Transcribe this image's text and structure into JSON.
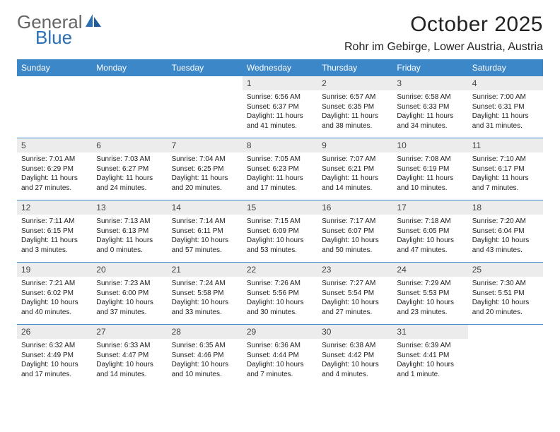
{
  "logo": {
    "text_general": "General",
    "text_blue": "Blue"
  },
  "header": {
    "month_title": "October 2025",
    "location": "Rohr im Gebirge, Lower Austria, Austria"
  },
  "colors": {
    "header_bar": "#3b87c8",
    "daynum_bg": "#ececec",
    "rule": "#3b87c8",
    "text": "#222222",
    "logo_blue": "#2b6fb5",
    "logo_gray": "#666666"
  },
  "typography": {
    "month_title_fontsize": 30,
    "location_fontsize": 16,
    "dow_fontsize": 12,
    "daynum_fontsize": 12,
    "detail_fontsize": 10
  },
  "days_of_week": [
    "Sunday",
    "Monday",
    "Tuesday",
    "Wednesday",
    "Thursday",
    "Friday",
    "Saturday"
  ],
  "weeks": [
    [
      null,
      null,
      null,
      {
        "n": "1",
        "sunrise": "6:56 AM",
        "sunset": "6:37 PM",
        "daylight": "11 hours and 41 minutes."
      },
      {
        "n": "2",
        "sunrise": "6:57 AM",
        "sunset": "6:35 PM",
        "daylight": "11 hours and 38 minutes."
      },
      {
        "n": "3",
        "sunrise": "6:58 AM",
        "sunset": "6:33 PM",
        "daylight": "11 hours and 34 minutes."
      },
      {
        "n": "4",
        "sunrise": "7:00 AM",
        "sunset": "6:31 PM",
        "daylight": "11 hours and 31 minutes."
      }
    ],
    [
      {
        "n": "5",
        "sunrise": "7:01 AM",
        "sunset": "6:29 PM",
        "daylight": "11 hours and 27 minutes."
      },
      {
        "n": "6",
        "sunrise": "7:03 AM",
        "sunset": "6:27 PM",
        "daylight": "11 hours and 24 minutes."
      },
      {
        "n": "7",
        "sunrise": "7:04 AM",
        "sunset": "6:25 PM",
        "daylight": "11 hours and 20 minutes."
      },
      {
        "n": "8",
        "sunrise": "7:05 AM",
        "sunset": "6:23 PM",
        "daylight": "11 hours and 17 minutes."
      },
      {
        "n": "9",
        "sunrise": "7:07 AM",
        "sunset": "6:21 PM",
        "daylight": "11 hours and 14 minutes."
      },
      {
        "n": "10",
        "sunrise": "7:08 AM",
        "sunset": "6:19 PM",
        "daylight": "11 hours and 10 minutes."
      },
      {
        "n": "11",
        "sunrise": "7:10 AM",
        "sunset": "6:17 PM",
        "daylight": "11 hours and 7 minutes."
      }
    ],
    [
      {
        "n": "12",
        "sunrise": "7:11 AM",
        "sunset": "6:15 PM",
        "daylight": "11 hours and 3 minutes."
      },
      {
        "n": "13",
        "sunrise": "7:13 AM",
        "sunset": "6:13 PM",
        "daylight": "11 hours and 0 minutes."
      },
      {
        "n": "14",
        "sunrise": "7:14 AM",
        "sunset": "6:11 PM",
        "daylight": "10 hours and 57 minutes."
      },
      {
        "n": "15",
        "sunrise": "7:15 AM",
        "sunset": "6:09 PM",
        "daylight": "10 hours and 53 minutes."
      },
      {
        "n": "16",
        "sunrise": "7:17 AM",
        "sunset": "6:07 PM",
        "daylight": "10 hours and 50 minutes."
      },
      {
        "n": "17",
        "sunrise": "7:18 AM",
        "sunset": "6:05 PM",
        "daylight": "10 hours and 47 minutes."
      },
      {
        "n": "18",
        "sunrise": "7:20 AM",
        "sunset": "6:04 PM",
        "daylight": "10 hours and 43 minutes."
      }
    ],
    [
      {
        "n": "19",
        "sunrise": "7:21 AM",
        "sunset": "6:02 PM",
        "daylight": "10 hours and 40 minutes."
      },
      {
        "n": "20",
        "sunrise": "7:23 AM",
        "sunset": "6:00 PM",
        "daylight": "10 hours and 37 minutes."
      },
      {
        "n": "21",
        "sunrise": "7:24 AM",
        "sunset": "5:58 PM",
        "daylight": "10 hours and 33 minutes."
      },
      {
        "n": "22",
        "sunrise": "7:26 AM",
        "sunset": "5:56 PM",
        "daylight": "10 hours and 30 minutes."
      },
      {
        "n": "23",
        "sunrise": "7:27 AM",
        "sunset": "5:54 PM",
        "daylight": "10 hours and 27 minutes."
      },
      {
        "n": "24",
        "sunrise": "7:29 AM",
        "sunset": "5:53 PM",
        "daylight": "10 hours and 23 minutes."
      },
      {
        "n": "25",
        "sunrise": "7:30 AM",
        "sunset": "5:51 PM",
        "daylight": "10 hours and 20 minutes."
      }
    ],
    [
      {
        "n": "26",
        "sunrise": "6:32 AM",
        "sunset": "4:49 PM",
        "daylight": "10 hours and 17 minutes."
      },
      {
        "n": "27",
        "sunrise": "6:33 AM",
        "sunset": "4:47 PM",
        "daylight": "10 hours and 14 minutes."
      },
      {
        "n": "28",
        "sunrise": "6:35 AM",
        "sunset": "4:46 PM",
        "daylight": "10 hours and 10 minutes."
      },
      {
        "n": "29",
        "sunrise": "6:36 AM",
        "sunset": "4:44 PM",
        "daylight": "10 hours and 7 minutes."
      },
      {
        "n": "30",
        "sunrise": "6:38 AM",
        "sunset": "4:42 PM",
        "daylight": "10 hours and 4 minutes."
      },
      {
        "n": "31",
        "sunrise": "6:39 AM",
        "sunset": "4:41 PM",
        "daylight": "10 hours and 1 minute."
      },
      null
    ]
  ],
  "labels": {
    "sunrise": "Sunrise:",
    "sunset": "Sunset:",
    "daylight": "Daylight:"
  }
}
